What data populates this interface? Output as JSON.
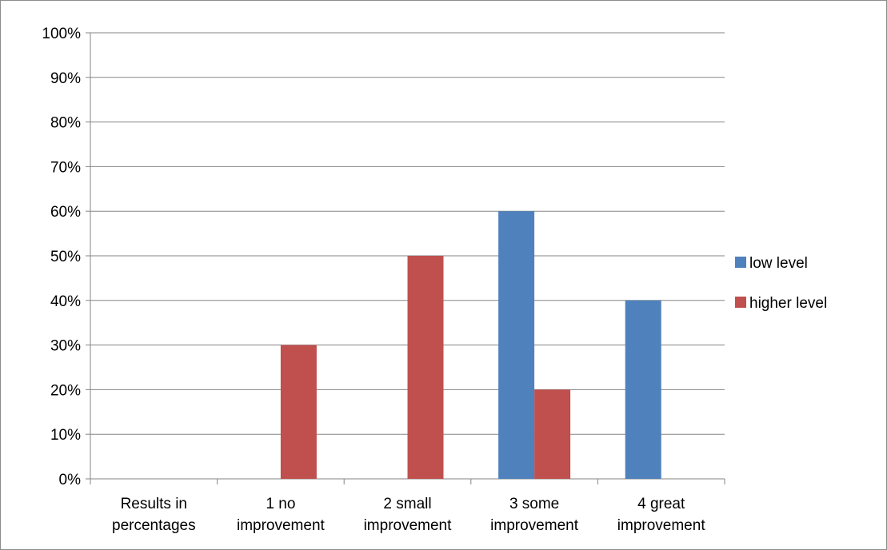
{
  "chart_data": {
    "type": "bar",
    "categories": [
      [
        "Results in",
        "percentages"
      ],
      [
        "1 no",
        "improvement"
      ],
      [
        "2 small",
        "improvement"
      ],
      [
        "3 some",
        "improvement"
      ],
      [
        "4 great",
        "improvement"
      ]
    ],
    "series": [
      {
        "name": "low level",
        "color": "#4f81bd",
        "values": [
          0,
          0,
          0,
          60,
          40
        ]
      },
      {
        "name": "higher level",
        "color": "#c0504d",
        "values": [
          0,
          30,
          50,
          20,
          0
        ]
      }
    ],
    "y_ticks": [
      "0%",
      "10%",
      "20%",
      "30%",
      "40%",
      "50%",
      "60%",
      "70%",
      "80%",
      "90%",
      "100%"
    ],
    "ylim": [
      0,
      100
    ],
    "grid": true,
    "legend": "right",
    "title": "",
    "xlabel": "",
    "ylabel": ""
  }
}
